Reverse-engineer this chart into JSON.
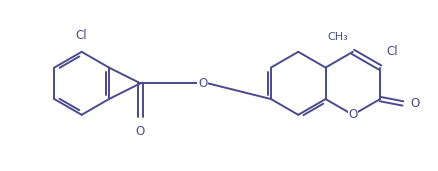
{
  "background": "#ffffff",
  "line_color": "#4a4a8c",
  "line_width": 1.4,
  "text_color": "#4a4a8c",
  "font_size": 8.5,
  "figsize": [
    4.39,
    1.71
  ],
  "dpi": 100,
  "xlim": [
    0,
    10
  ],
  "ylim": [
    0.2,
    4.0
  ]
}
